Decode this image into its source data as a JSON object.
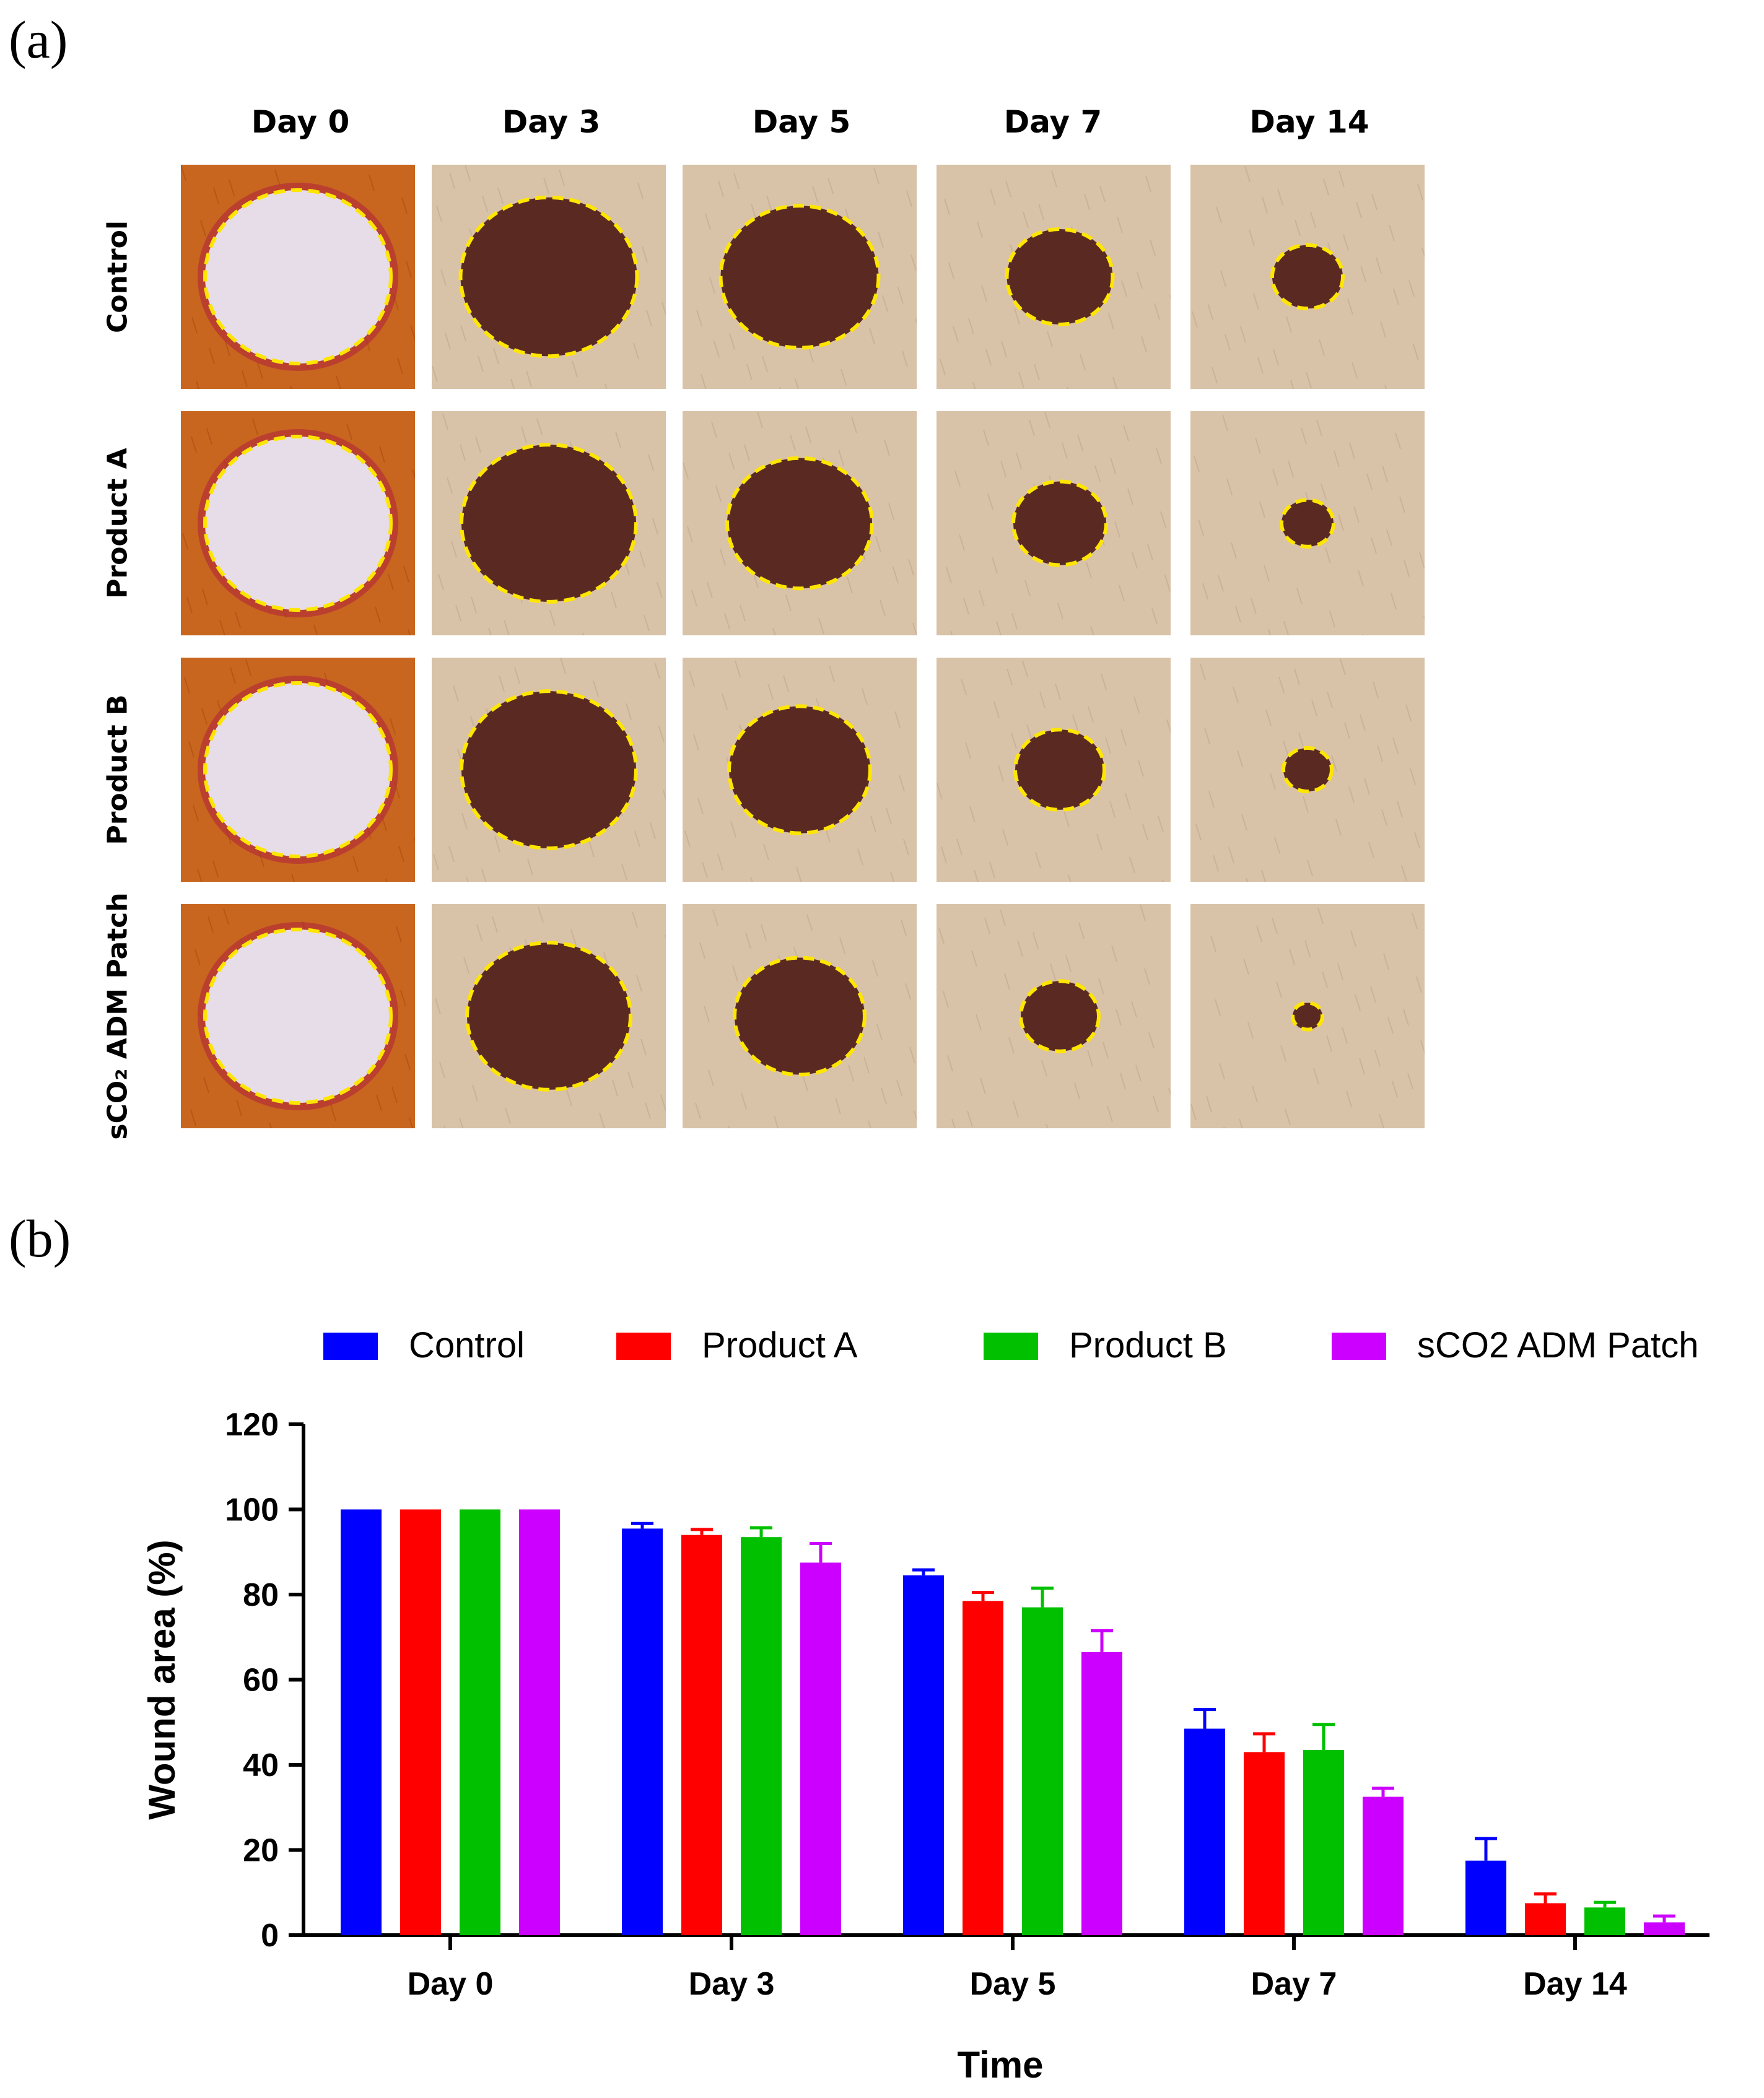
{
  "panel_a": {
    "label": "(a)",
    "columns": [
      "Day 0",
      "Day 3",
      "Day 5",
      "Day 7",
      "Day 14"
    ],
    "rows": [
      "Control",
      "Product A",
      "Product B",
      "sCO₂ ADM Patch"
    ],
    "colors": {
      "day0_tissue": "#c8661f",
      "wound_open": "#e6dde8",
      "wound_scab": "#5a2a22",
      "skin": "#d8c2a8",
      "outline": "#ffe600"
    },
    "wound_relative_size": [
      [
        1.0,
        0.95,
        0.85,
        0.57,
        0.38
      ],
      [
        1.0,
        0.94,
        0.78,
        0.5,
        0.28
      ],
      [
        1.0,
        0.94,
        0.76,
        0.48,
        0.26
      ],
      [
        1.0,
        0.88,
        0.7,
        0.42,
        0.16
      ]
    ]
  },
  "panel_b": {
    "label": "(b)"
  },
  "chart_data": {
    "type": "bar",
    "categories": [
      "Day 0",
      "Day 3",
      "Day 5",
      "Day 7",
      "Day 14"
    ],
    "series": [
      {
        "name": "Control",
        "color": "#0000ff",
        "values": [
          100,
          95.5,
          84.5,
          48.5,
          17.5
        ],
        "errors": [
          0,
          1.2,
          1.3,
          4.5,
          5.2
        ]
      },
      {
        "name": "Product A",
        "color": "#ff0000",
        "values": [
          100,
          94,
          78.5,
          43,
          7.5
        ],
        "errors": [
          0,
          1.3,
          2,
          4.3,
          2.2
        ]
      },
      {
        "name": "Product B",
        "color": "#00c000",
        "values": [
          100,
          93.5,
          77,
          43.5,
          6.5
        ],
        "errors": [
          0,
          2.2,
          4.5,
          6,
          1.2
        ]
      },
      {
        "name": "sCO2 ADM Patch",
        "color": "#cc00ff",
        "values": [
          100,
          87.5,
          66.5,
          32.5,
          3
        ],
        "errors": [
          0,
          4.5,
          5,
          2,
          1.5
        ]
      }
    ],
    "title": "",
    "xlabel": "Time",
    "ylabel": "Wound area (%)",
    "ylim": [
      0,
      120
    ],
    "yticks": [
      "0",
      "20",
      "40",
      "60",
      "80",
      "100",
      "120"
    ],
    "grid": false,
    "legend": "top"
  }
}
